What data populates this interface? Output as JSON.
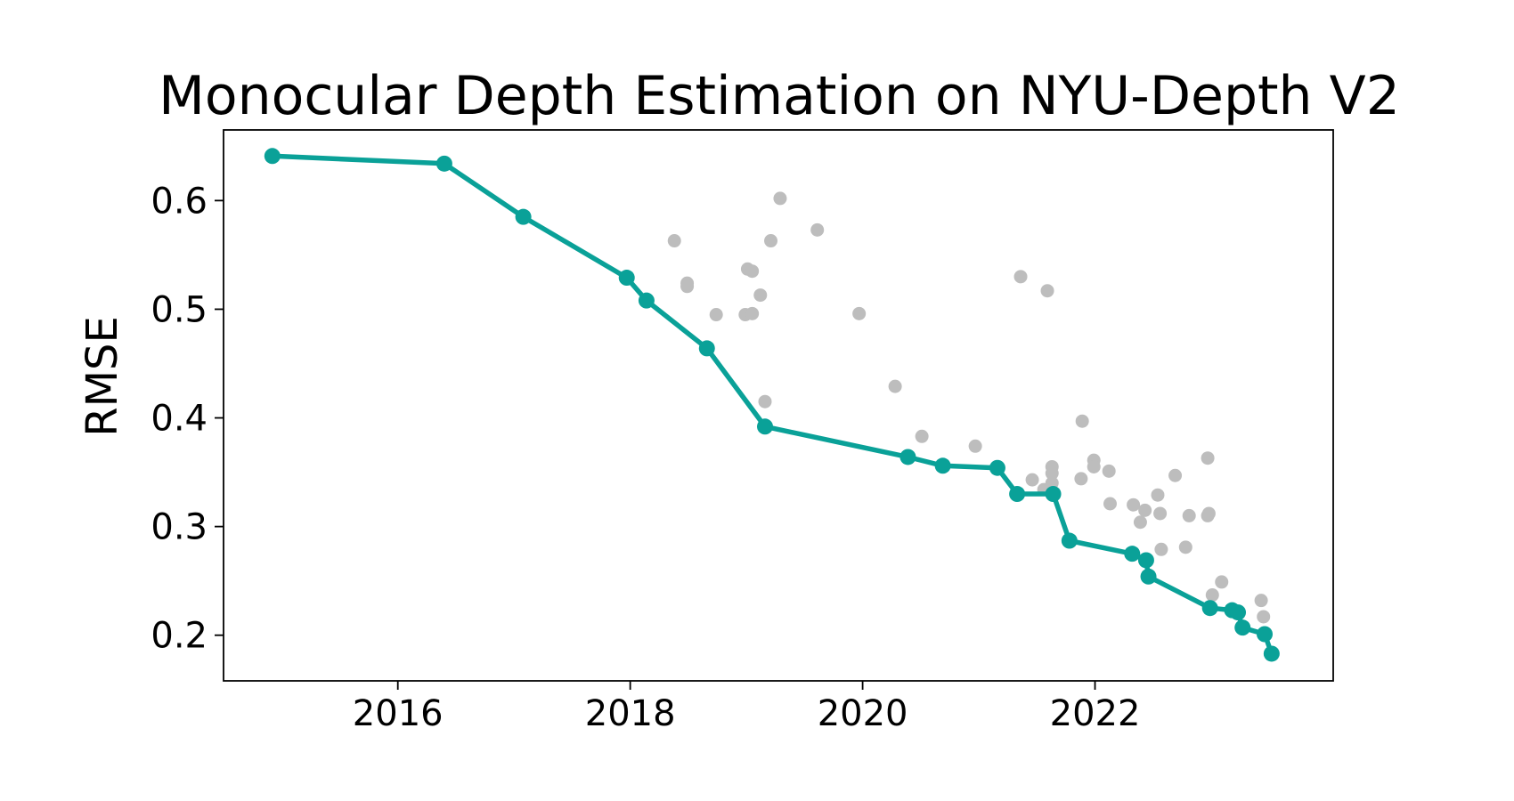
{
  "chart_data": {
    "type": "scatter",
    "title": "Monocular Depth Estimation on NYU-Depth V2",
    "xlabel": "",
    "ylabel": "RMSE",
    "x_unit": "year",
    "xlim": [
      2014.5,
      2024.05
    ],
    "ylim": [
      0.158,
      0.665
    ],
    "xticks": [
      2016,
      2018,
      2020,
      2022
    ],
    "yticks": [
      0.2,
      0.3,
      0.4,
      0.5,
      0.6
    ],
    "ytick_labels": [
      "0.2",
      "0.3",
      "0.4",
      "0.5",
      "0.6"
    ],
    "grid": false,
    "legend": "none",
    "series": [
      {
        "role": "other-results",
        "color": "#bdbdbd",
        "style": "points",
        "points": [
          [
            2018.38,
            0.563
          ],
          [
            2018.49,
            0.524
          ],
          [
            2018.49,
            0.521
          ],
          [
            2018.74,
            0.495
          ],
          [
            2019.01,
            0.537
          ],
          [
            2019.05,
            0.535
          ],
          [
            2018.99,
            0.495
          ],
          [
            2019.05,
            0.496
          ],
          [
            2019.12,
            0.513
          ],
          [
            2019.16,
            0.415
          ],
          [
            2019.21,
            0.563
          ],
          [
            2019.29,
            0.602
          ],
          [
            2019.61,
            0.573
          ],
          [
            2019.97,
            0.496
          ],
          [
            2020.28,
            0.429
          ],
          [
            2020.51,
            0.383
          ],
          [
            2020.97,
            0.374
          ],
          [
            2021.36,
            0.53
          ],
          [
            2021.46,
            0.343
          ],
          [
            2021.56,
            0.334
          ],
          [
            2021.59,
            0.517
          ],
          [
            2021.63,
            0.355
          ],
          [
            2021.63,
            0.349
          ],
          [
            2021.63,
            0.34
          ],
          [
            2021.89,
            0.397
          ],
          [
            2021.88,
            0.344
          ],
          [
            2021.99,
            0.361
          ],
          [
            2021.99,
            0.355
          ],
          [
            2022.12,
            0.351
          ],
          [
            2022.13,
            0.321
          ],
          [
            2022.33,
            0.32
          ],
          [
            2022.39,
            0.304
          ],
          [
            2022.43,
            0.315
          ],
          [
            2022.54,
            0.329
          ],
          [
            2022.56,
            0.312
          ],
          [
            2022.57,
            0.279
          ],
          [
            2022.69,
            0.347
          ],
          [
            2022.78,
            0.281
          ],
          [
            2022.81,
            0.31
          ],
          [
            2022.97,
            0.363
          ],
          [
            2022.97,
            0.31
          ],
          [
            2022.98,
            0.312
          ],
          [
            2023.01,
            0.237
          ],
          [
            2023.09,
            0.249
          ],
          [
            2023.43,
            0.232
          ],
          [
            2023.45,
            0.217
          ]
        ]
      },
      {
        "role": "state-of-the-art",
        "color": "#0aa198",
        "style": "line+markers",
        "points": [
          [
            2014.92,
            0.641
          ],
          [
            2016.4,
            0.634
          ],
          [
            2017.08,
            0.585
          ],
          [
            2017.97,
            0.529
          ],
          [
            2018.14,
            0.508
          ],
          [
            2018.66,
            0.464
          ],
          [
            2019.16,
            0.392
          ],
          [
            2020.39,
            0.364
          ],
          [
            2020.69,
            0.356
          ],
          [
            2021.16,
            0.354
          ],
          [
            2021.33,
            0.33
          ],
          [
            2021.64,
            0.33
          ],
          [
            2021.78,
            0.287
          ],
          [
            2022.32,
            0.275
          ],
          [
            2022.44,
            0.269
          ],
          [
            2022.46,
            0.254
          ],
          [
            2022.99,
            0.225
          ],
          [
            2023.18,
            0.223
          ],
          [
            2023.23,
            0.221
          ],
          [
            2023.27,
            0.207
          ],
          [
            2023.46,
            0.201
          ],
          [
            2023.52,
            0.183
          ]
        ]
      }
    ]
  }
}
